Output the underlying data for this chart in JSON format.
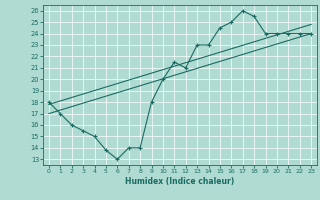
{
  "title": "",
  "xlabel": "Humidex (Indice chaleur)",
  "xlim": [
    -0.5,
    23.5
  ],
  "ylim": [
    12.5,
    26.5
  ],
  "xticks": [
    0,
    1,
    2,
    3,
    4,
    5,
    6,
    7,
    8,
    9,
    10,
    11,
    12,
    13,
    14,
    15,
    16,
    17,
    18,
    19,
    20,
    21,
    22,
    23
  ],
  "yticks": [
    13,
    14,
    15,
    16,
    17,
    18,
    19,
    20,
    21,
    22,
    23,
    24,
    25,
    26
  ],
  "background_color": "#b0dbd2",
  "grid_color": "#ffffff",
  "line_color": "#1a6b62",
  "zigzag_x": [
    0,
    1,
    2,
    3,
    4,
    5,
    6,
    7,
    8,
    9,
    10,
    11,
    12,
    13,
    14,
    15,
    16,
    17,
    18,
    19,
    20,
    21,
    22,
    23
  ],
  "zigzag_y": [
    18,
    17,
    16,
    15.5,
    15,
    13.8,
    13,
    14,
    14,
    18,
    20,
    21.5,
    21,
    23,
    23,
    24.5,
    25,
    26,
    25.5,
    24,
    24,
    24,
    24,
    24
  ],
  "line1_x": [
    0,
    23
  ],
  "line1_y": [
    17.0,
    24.0
  ],
  "line2_x": [
    0,
    23
  ],
  "line2_y": [
    17.8,
    24.8
  ]
}
